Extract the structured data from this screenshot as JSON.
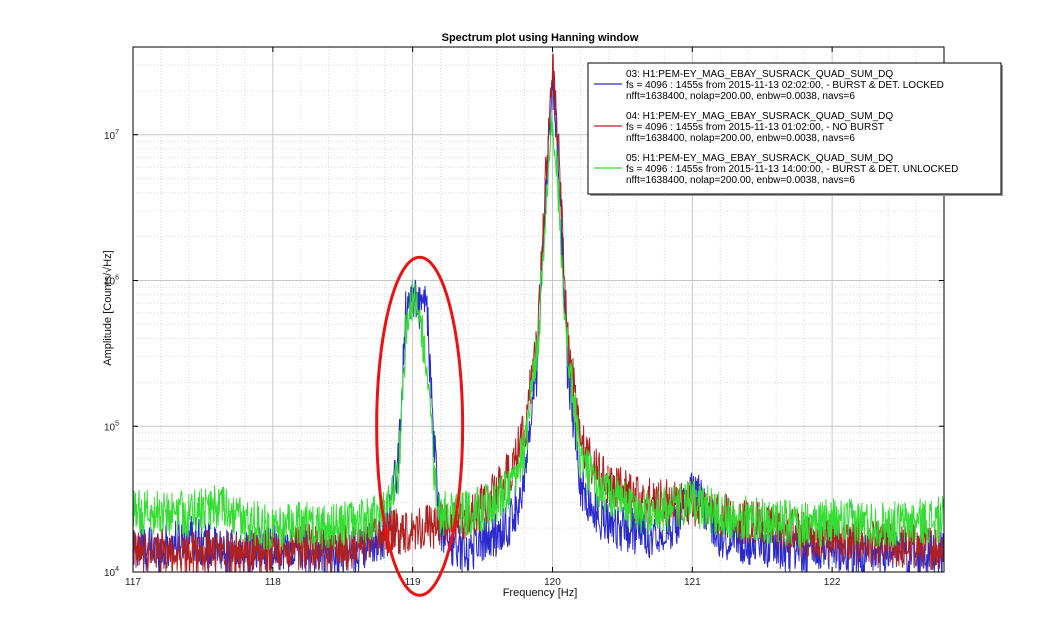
{
  "chart_data": {
    "type": "line",
    "title": "Spectrum plot using Hanning window",
    "xlabel": "Frequency [Hz]",
    "ylabel": "Amplitude [Counts/√Hz]",
    "xlim": [
      117,
      122.8
    ],
    "ylim": [
      10000,
      40000000
    ],
    "y_scale": "log",
    "grid": true,
    "x_ticks": [
      117,
      118,
      119,
      120,
      121,
      122
    ],
    "x_tick_labels": [
      "117",
      "118",
      "119",
      "120",
      "121",
      "122"
    ],
    "y_ticks": [
      10000,
      100000,
      1000000,
      10000000
    ],
    "y_tick_labels": [
      {
        "base": "10",
        "exp": "4"
      },
      {
        "base": "10",
        "exp": "5"
      },
      {
        "base": "10",
        "exp": "6"
      },
      {
        "base": "10",
        "exp": "7"
      }
    ],
    "legend_position": "top-right",
    "series": [
      {
        "name": "03: H1:PEM-EY_MAG_EBAY_SUSRACK_QUAD_SUM_DQ",
        "detail1": "fs = 4096 : 1455s from 2015-11-13 02:02:00,           - BURST & DET. LOCKED",
        "detail2": "nfft=1638400, nolap=200.00, enbw=0.0038, navs=6",
        "color": "#2a2acc",
        "x": [
          117.0,
          117.2,
          117.4,
          117.6,
          117.8,
          118.0,
          118.2,
          118.4,
          118.6,
          118.8,
          118.9,
          118.95,
          119.0,
          119.05,
          119.1,
          119.15,
          119.2,
          119.3,
          119.4,
          119.5,
          119.6,
          119.7,
          119.8,
          119.9,
          119.95,
          120.0,
          120.05,
          120.1,
          120.2,
          120.3,
          120.5,
          120.7,
          120.9,
          121.0,
          121.2,
          121.4,
          121.6,
          121.8,
          122.0,
          122.2,
          122.4,
          122.6,
          122.8
        ],
        "y": [
          15000,
          14000,
          18000,
          14000,
          13000,
          15000,
          14000,
          13000,
          14000,
          18000,
          60000,
          600000,
          800000,
          650000,
          700000,
          80000,
          20000,
          15000,
          14000,
          17000,
          18000,
          22000,
          40000,
          300000,
          4000000,
          25000000,
          5000000,
          300000,
          40000,
          25000,
          20000,
          18000,
          22000,
          38000,
          18000,
          16000,
          15000,
          13000,
          15000,
          13000,
          14000,
          13000,
          14000
        ]
      },
      {
        "name": "04: H1:PEM-EY_MAG_EBAY_SUSRACK_QUAD_SUM_DQ",
        "detail1": "fs = 4096 : 1455s from 2015-11-13 01:02:00,                                          - NO BURST",
        "detail2": "nfft=1638400, nolap=200.00, enbw=0.0038, navs=6",
        "color": "#b02020",
        "x": [
          117.0,
          117.2,
          117.4,
          117.6,
          117.8,
          118.0,
          118.2,
          118.4,
          118.6,
          118.8,
          119.0,
          119.2,
          119.4,
          119.5,
          119.6,
          119.7,
          119.8,
          119.9,
          119.95,
          120.0,
          120.05,
          120.1,
          120.2,
          120.3,
          120.4,
          120.6,
          120.8,
          121.0,
          121.2,
          121.4,
          121.6,
          121.8,
          122.0,
          122.2,
          122.4,
          122.6,
          122.8
        ],
        "y": [
          13000,
          14000,
          13000,
          14000,
          13000,
          14000,
          15000,
          14000,
          15000,
          18000,
          20000,
          21000,
          24000,
          28000,
          35000,
          50000,
          90000,
          500000,
          5000000,
          30000000,
          6000000,
          500000,
          80000,
          50000,
          40000,
          32000,
          30000,
          30000,
          25000,
          22000,
          20000,
          18000,
          17000,
          16000,
          15000,
          15000,
          15000
        ]
      },
      {
        "name": "05: H1:PEM-EY_MAG_EBAY_SUSRACK_QUAD_SUM_DQ",
        "detail1": "fs = 4096 : 1455s from 2015-11-13 14:00:00,           - BURST & DET. UNLOCKED",
        "detail2": "nfft=1638400, nolap=200.00, enbw=0.0038, navs=6",
        "color": "#33dd33",
        "x": [
          117.0,
          117.2,
          117.4,
          117.6,
          117.8,
          118.0,
          118.2,
          118.4,
          118.6,
          118.8,
          118.9,
          118.95,
          119.0,
          119.05,
          119.1,
          119.15,
          119.2,
          119.4,
          119.6,
          119.7,
          119.8,
          119.9,
          119.95,
          120.0,
          120.05,
          120.1,
          120.2,
          120.3,
          120.5,
          120.7,
          120.9,
          121.0,
          121.2,
          121.4,
          121.6,
          121.8,
          122.0,
          122.2,
          122.4,
          122.6,
          122.8
        ],
        "y": [
          25000,
          26000,
          25000,
          28000,
          22000,
          20000,
          21000,
          20000,
          22000,
          25000,
          50000,
          400000,
          800000,
          500000,
          300000,
          50000,
          25000,
          25000,
          30000,
          40000,
          70000,
          400000,
          3000000,
          15000000,
          3000000,
          400000,
          60000,
          40000,
          30000,
          25000,
          28000,
          30000,
          25000,
          23000,
          22000,
          21000,
          22000,
          22000,
          21000,
          22000,
          23000
        ]
      }
    ],
    "annotation": {
      "shape": "ellipse",
      "color": "#ee1111",
      "x_center": 119.05,
      "y_center": 100000
    }
  }
}
